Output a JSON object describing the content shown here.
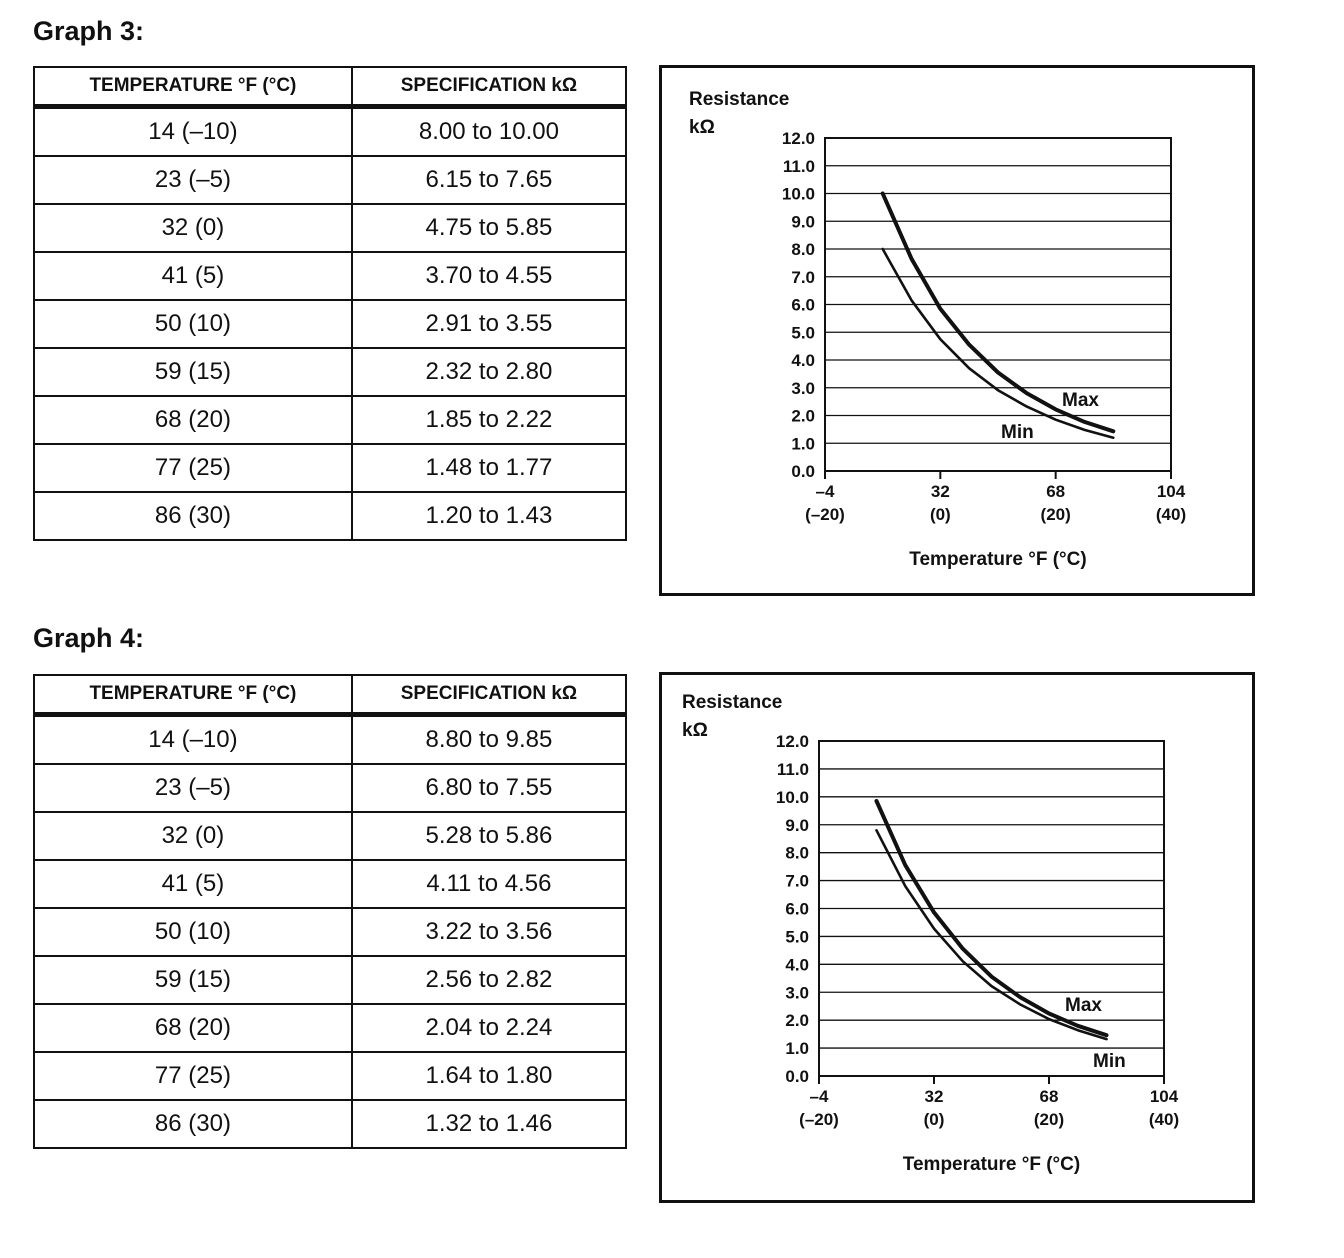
{
  "graphs": [
    {
      "heading": "Graph 3:",
      "table": {
        "headers": [
          "TEMPERATURE °F (°C)",
          "SPECIFICATION kΩ"
        ],
        "rows": [
          [
            "14 (–10)",
            "8.00 to 10.00"
          ],
          [
            "23 (–5)",
            "6.15 to 7.65"
          ],
          [
            "32 (0)",
            "4.75 to 5.85"
          ],
          [
            "41 (5)",
            "3.70 to 4.55"
          ],
          [
            "50 (10)",
            "2.91 to 3.55"
          ],
          [
            "59 (15)",
            "2.32 to 2.80"
          ],
          [
            "68 (20)",
            "1.85 to 2.22"
          ],
          [
            "77 (25)",
            "1.48 to 1.77"
          ],
          [
            "86 (30)",
            "1.20 to 1.43"
          ]
        ]
      }
    },
    {
      "heading": "Graph 4:",
      "table": {
        "headers": [
          "TEMPERATURE °F (°C)",
          "SPECIFICATION kΩ"
        ],
        "rows": [
          [
            "14 (–10)",
            "8.80 to 9.85"
          ],
          [
            "23 (–5)",
            "6.80 to 7.55"
          ],
          [
            "32 (0)",
            "5.28 to 5.86"
          ],
          [
            "41 (5)",
            "4.11 to 4.56"
          ],
          [
            "50 (10)",
            "3.22 to 3.56"
          ],
          [
            "59 (15)",
            "2.56 to 2.82"
          ],
          [
            "68 (20)",
            "2.04 to 2.24"
          ],
          [
            "77 (25)",
            "1.64 to 1.80"
          ],
          [
            "86 (30)",
            "1.32 to 1.46"
          ]
        ]
      }
    }
  ],
  "chart_data": [
    {
      "type": "line",
      "ylabel": [
        "Resistance",
        "kΩ"
      ],
      "xlabel": "Temperature °F (°C)",
      "ylim": [
        0,
        12
      ],
      "xlim": [
        -4,
        104
      ],
      "yticks": [
        "0.0",
        "1.0",
        "2.0",
        "3.0",
        "4.0",
        "5.0",
        "6.0",
        "7.0",
        "8.0",
        "9.0",
        "10.0",
        "11.0",
        "12.0"
      ],
      "xticks": [
        {
          "value": -4,
          "label": "–4",
          "sub": "(–20)"
        },
        {
          "value": 32,
          "label": "32",
          "sub": "(0)"
        },
        {
          "value": 68,
          "label": "68",
          "sub": "(20)"
        },
        {
          "value": 104,
          "label": "104",
          "sub": "(40)"
        }
      ],
      "grid": true,
      "x": [
        14,
        23,
        32,
        41,
        50,
        59,
        68,
        77,
        86
      ],
      "series": [
        {
          "name": "Max",
          "values": [
            10.0,
            7.65,
            5.85,
            4.55,
            3.55,
            2.8,
            2.22,
            1.77,
            1.43
          ]
        },
        {
          "name": "Min",
          "values": [
            8.0,
            6.15,
            4.75,
            3.7,
            2.91,
            2.32,
            1.85,
            1.48,
            1.2
          ]
        }
      ]
    },
    {
      "type": "line",
      "ylabel": [
        "Resistance",
        "kΩ"
      ],
      "xlabel": "Temperature °F (°C)",
      "ylim": [
        0,
        12
      ],
      "xlim": [
        -4,
        104
      ],
      "yticks": [
        "0.0",
        "1.0",
        "2.0",
        "3.0",
        "4.0",
        "5.0",
        "6.0",
        "7.0",
        "8.0",
        "9.0",
        "10.0",
        "11.0",
        "12.0"
      ],
      "xticks": [
        {
          "value": -4,
          "label": "–4",
          "sub": "(–20)"
        },
        {
          "value": 32,
          "label": "32",
          "sub": "(0)"
        },
        {
          "value": 68,
          "label": "68",
          "sub": "(20)"
        },
        {
          "value": 104,
          "label": "104",
          "sub": "(40)"
        }
      ],
      "grid": true,
      "x": [
        14,
        23,
        32,
        41,
        50,
        59,
        68,
        77,
        86
      ],
      "series": [
        {
          "name": "Max",
          "values": [
            9.85,
            7.55,
            5.86,
            4.56,
            3.56,
            2.82,
            2.24,
            1.8,
            1.46
          ]
        },
        {
          "name": "Min",
          "values": [
            8.8,
            6.8,
            5.28,
            4.11,
            3.22,
            2.56,
            2.04,
            1.64,
            1.32
          ]
        }
      ]
    }
  ]
}
